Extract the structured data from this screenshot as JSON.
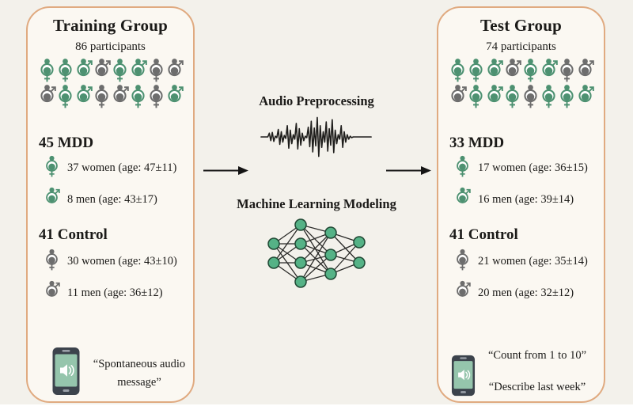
{
  "colors": {
    "icon_green": "#4d9171",
    "icon_gray": "#6d6d6d",
    "node_green": "#55b286",
    "node_stroke": "#1f4733",
    "edge": "#2a2a28",
    "panel_border": "#e0aa80",
    "panel_bg": "#fbf8f2",
    "canvas_bg": "#f3f1eb",
    "text": "#1b1a18",
    "phone_body": "#3c434c",
    "phone_screen": "#95c5ac"
  },
  "icons": {
    "person_female": "female-gender-person-icon",
    "person_male": "male-gender-person-icon",
    "phone": "smartphone-speaker-icon",
    "waveform": "audio-waveform-icon",
    "network": "neural-network-icon",
    "arrow": "right-arrow-icon"
  },
  "training": {
    "title": "Training Group",
    "participants": "86 participants",
    "pictogram": [
      [
        "female-green",
        "female-green",
        "male-green",
        "male-gray",
        "female-green",
        "male-green",
        "female-gray",
        "male-gray"
      ],
      [
        "male-gray",
        "female-green",
        "male-green",
        "female-gray",
        "male-gray",
        "female-green",
        "female-gray",
        "male-green"
      ]
    ],
    "mdd_heading": "45 MDD",
    "mdd_women": "37 women (age: 47±11)",
    "mdd_women_icon": "female-green",
    "mdd_men": "8 men (age: 43±17)",
    "mdd_men_icon": "male-green",
    "control_heading": "41 Control",
    "control_women": "30 women (age: 43±10)",
    "control_women_icon": "female-gray",
    "control_men": "11 men (age: 36±12)",
    "control_men_icon": "male-gray",
    "quote": "“Spontaneous audio message”"
  },
  "pipeline": {
    "audio_title": "Audio Preprocessing",
    "ml_title": "Machine Learning Modeling"
  },
  "test": {
    "title": "Test Group",
    "participants": "74 participants",
    "pictogram": [
      [
        "female-green",
        "female-green",
        "male-green",
        "male-gray",
        "female-green",
        "male-green",
        "female-gray",
        "male-gray"
      ],
      [
        "male-gray",
        "female-green",
        "male-green",
        "female-green",
        "female-gray",
        "female-green",
        "female-green",
        "male-green"
      ]
    ],
    "mdd_heading": "33 MDD",
    "mdd_women": "17 women (age: 36±15)",
    "mdd_women_icon": "female-green",
    "mdd_men": "16 men (age: 39±14)",
    "mdd_men_icon": "male-green",
    "control_heading": "41 Control",
    "control_women": "21 women (age: 35±14)",
    "control_women_icon": "female-gray",
    "control_men": "20 men (age: 32±12)",
    "control_men_icon": "male-gray",
    "quote1": "“Count from 1 to 10”",
    "quote2": "“Describe last week”"
  }
}
